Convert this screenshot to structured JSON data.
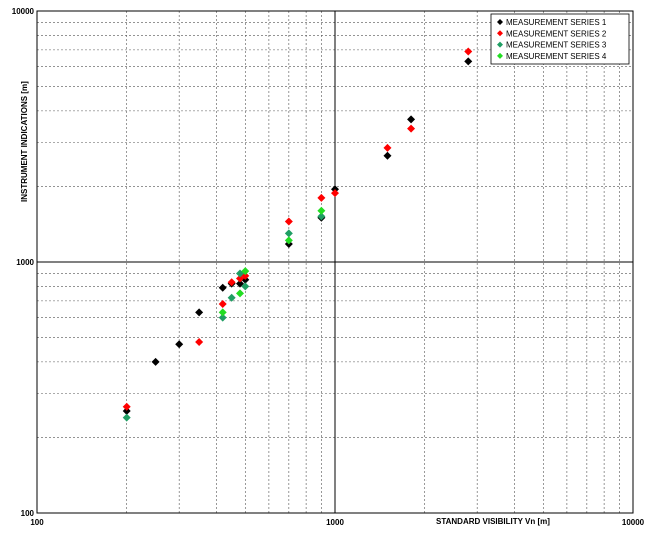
{
  "chart_data": {
    "type": "scatter",
    "title": "",
    "xlabel": "STANDARD VISIBILITY Vn [m]",
    "ylabel": "INSTRUMENT INDICATIONS [m]",
    "xscale": "log",
    "yscale": "log",
    "xlim": [
      100,
      10000
    ],
    "ylim": [
      100,
      10000
    ],
    "x_tick_labels": [
      "100",
      "1000",
      "10000"
    ],
    "y_tick_labels": [
      "100",
      "1000",
      "10000"
    ],
    "grid": true,
    "legend_position": "top-right",
    "series": [
      {
        "name": "MEASUREMENT SERIES 1",
        "color": "#000000",
        "marker": "diamond",
        "points": [
          [
            200,
            255
          ],
          [
            250,
            400
          ],
          [
            300,
            470
          ],
          [
            350,
            630
          ],
          [
            420,
            790
          ],
          [
            450,
            820
          ],
          [
            480,
            820
          ],
          [
            500,
            850
          ],
          [
            700,
            1180
          ],
          [
            900,
            1500
          ],
          [
            1000,
            1950
          ],
          [
            1500,
            2650
          ],
          [
            1800,
            3700
          ],
          [
            2800,
            6300
          ]
        ]
      },
      {
        "name": "MEASUREMENT SERIES 2",
        "color": "#ff0000",
        "marker": "diamond",
        "points": [
          [
            200,
            265
          ],
          [
            350,
            480
          ],
          [
            420,
            680
          ],
          [
            450,
            830
          ],
          [
            480,
            860
          ],
          [
            500,
            880
          ],
          [
            700,
            1450
          ],
          [
            900,
            1800
          ],
          [
            1000,
            1880
          ],
          [
            1500,
            2850
          ],
          [
            1800,
            3400
          ],
          [
            2800,
            6900
          ]
        ]
      },
      {
        "name": "MEASUREMENT SERIES 3",
        "color": "#1f9e63",
        "marker": "diamond",
        "points": [
          [
            200,
            240
          ],
          [
            420,
            600
          ],
          [
            450,
            720
          ],
          [
            480,
            900
          ],
          [
            500,
            800
          ],
          [
            700,
            1300
          ],
          [
            900,
            1520
          ]
        ]
      },
      {
        "name": "MEASUREMENT SERIES 4",
        "color": "#22dd22",
        "marker": "diamond",
        "points": [
          [
            420,
            630
          ],
          [
            480,
            750
          ],
          [
            500,
            920
          ],
          [
            700,
            1220
          ],
          [
            900,
            1600
          ]
        ]
      }
    ]
  }
}
